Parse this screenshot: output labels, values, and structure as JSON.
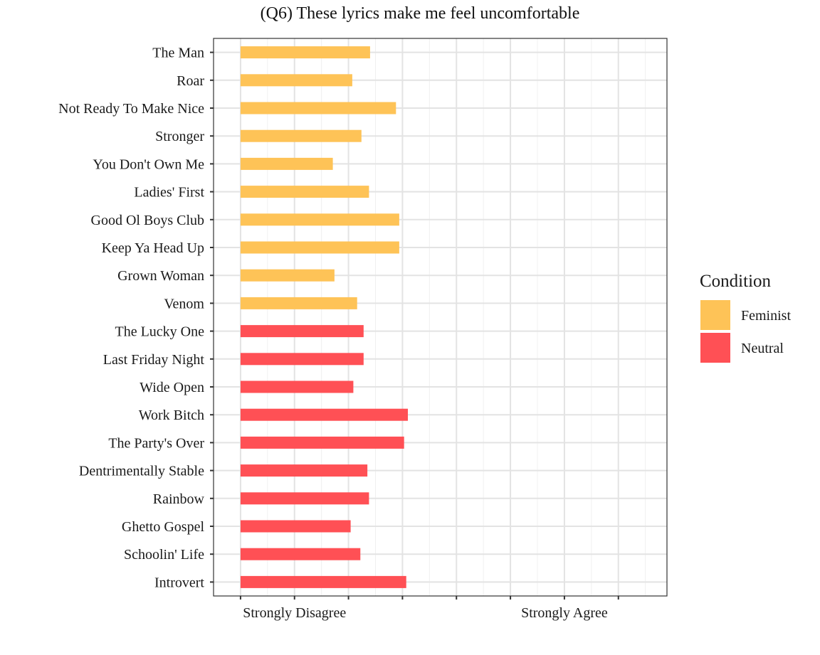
{
  "chart_data": {
    "type": "bar",
    "orientation": "horizontal",
    "title": "(Q6) These lyrics make me feel uncomfortable",
    "xlabel": "",
    "ylabel": "",
    "xlim": [
      0.5,
      8.9
    ],
    "x_ticks": [
      {
        "value": 1,
        "label": ""
      },
      {
        "value": 2,
        "label": "Strongly Disagree"
      },
      {
        "value": 3,
        "label": ""
      },
      {
        "value": 4,
        "label": ""
      },
      {
        "value": 5,
        "label": ""
      },
      {
        "value": 6,
        "label": ""
      },
      {
        "value": 7,
        "label": "Strongly Agree"
      },
      {
        "value": 8,
        "label": ""
      }
    ],
    "bar_start": 1,
    "grid": true,
    "legend": {
      "title": "Condition",
      "position": "right",
      "entries": [
        {
          "name": "Feminist",
          "color": "#FEC357"
        },
        {
          "name": "Neutral",
          "color": "#FF5055"
        }
      ]
    },
    "bars": [
      {
        "label": "The Man",
        "value": 3.4,
        "condition": "Feminist"
      },
      {
        "label": "Roar",
        "value": 3.07,
        "condition": "Feminist"
      },
      {
        "label": "Not Ready To Make Nice",
        "value": 3.88,
        "condition": "Feminist"
      },
      {
        "label": "Stronger",
        "value": 3.24,
        "condition": "Feminist"
      },
      {
        "label": "You Don't Own Me",
        "value": 2.71,
        "condition": "Feminist"
      },
      {
        "label": "Ladies' First",
        "value": 3.38,
        "condition": "Feminist"
      },
      {
        "label": "Good Ol Boys Club",
        "value": 3.94,
        "condition": "Feminist"
      },
      {
        "label": "Keep Ya Head Up",
        "value": 3.94,
        "condition": "Feminist"
      },
      {
        "label": "Grown Woman",
        "value": 2.74,
        "condition": "Feminist"
      },
      {
        "label": "Venom",
        "value": 3.16,
        "condition": "Feminist"
      },
      {
        "label": "The Lucky One",
        "value": 3.28,
        "condition": "Neutral"
      },
      {
        "label": "Last Friday Night",
        "value": 3.28,
        "condition": "Neutral"
      },
      {
        "label": "Wide Open",
        "value": 3.09,
        "condition": "Neutral"
      },
      {
        "label": "Work Bitch",
        "value": 4.1,
        "condition": "Neutral"
      },
      {
        "label": "The Party's Over",
        "value": 4.03,
        "condition": "Neutral"
      },
      {
        "label": "Dentrimentally Stable",
        "value": 3.35,
        "condition": "Neutral"
      },
      {
        "label": "Rainbow",
        "value": 3.38,
        "condition": "Neutral"
      },
      {
        "label": "Ghetto Gospel",
        "value": 3.04,
        "condition": "Neutral"
      },
      {
        "label": "Schoolin' Life",
        "value": 3.22,
        "condition": "Neutral"
      },
      {
        "label": "Introvert",
        "value": 4.07,
        "condition": "Neutral"
      }
    ]
  }
}
